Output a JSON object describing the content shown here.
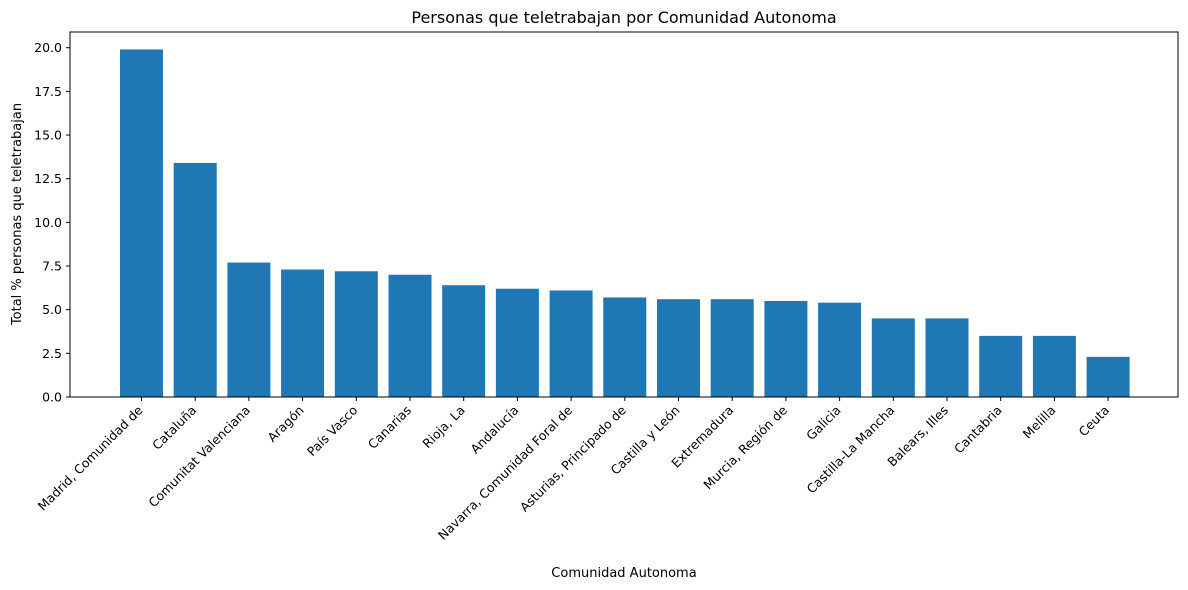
{
  "chart_data": {
    "type": "bar",
    "title": "Personas que teletrabajan por Comunidad Autonoma",
    "xlabel": "Comunidad Autonoma",
    "ylabel": "Total % personas que teletrabajan",
    "ylim": [
      0,
      20.9
    ],
    "yticks": [
      "0.0",
      "2.5",
      "5.0",
      "7.5",
      "10.0",
      "12.5",
      "15.0",
      "17.5",
      "20.0"
    ],
    "grid": false,
    "bar_color": "#1f77b4",
    "categories": [
      "Madrid, Comunidad de",
      "Cataluña",
      "Comunitat Valenciana",
      "Aragón",
      "País Vasco",
      "Canarias",
      "Rioja, La",
      "Andalucía",
      "Navarra, Comunidad Foral de",
      "Asturias, Principado de",
      "Castilla y León",
      "Extremadura",
      "Murcia, Región de",
      "Galicia",
      "Castilla-La Mancha",
      "Balears, Illes",
      "Cantabria",
      "Melilla",
      "Ceuta"
    ],
    "values": [
      19.9,
      13.4,
      7.7,
      7.3,
      7.2,
      7.0,
      6.4,
      6.2,
      6.1,
      5.7,
      5.6,
      5.6,
      5.5,
      5.4,
      4.5,
      4.5,
      3.5,
      3.5,
      2.3
    ]
  }
}
